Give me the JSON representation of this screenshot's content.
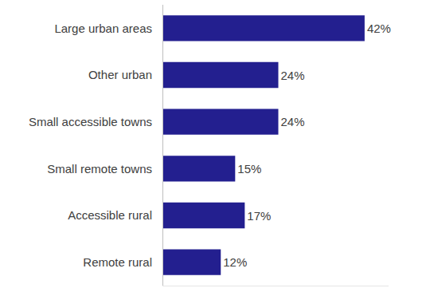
{
  "chart_data": {
    "type": "bar",
    "orientation": "horizontal",
    "categories": [
      "Large urban areas",
      "Other urban",
      "Small accessible towns",
      "Small remote towns",
      "Accessible rural",
      "Remote rural"
    ],
    "values": [
      42,
      24,
      24,
      15,
      17,
      12
    ],
    "value_labels": [
      "42%",
      "24%",
      "24%",
      "15%",
      "17%",
      "12%"
    ],
    "color": "#231f8f",
    "xlim": [
      0,
      47
    ],
    "data_labels": true,
    "tick_labels": "y",
    "grid": false
  }
}
